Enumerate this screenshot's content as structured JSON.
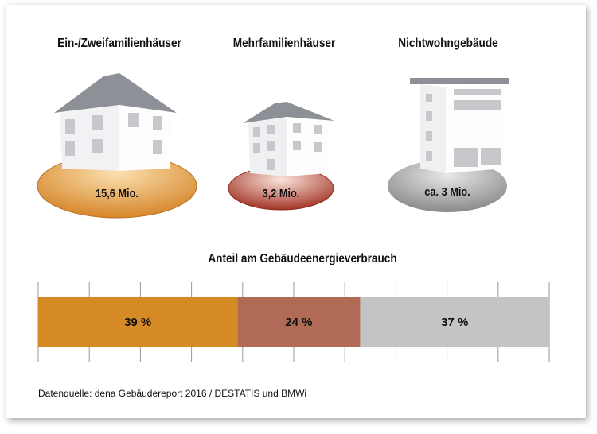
{
  "categories": [
    {
      "title": "Ein-/Zweifamilienhäuser",
      "count": "15,6 Mio.",
      "color": "#d68a2c"
    },
    {
      "title": "Mehrfamilienhäuser",
      "count": "3,2 Mio.",
      "color": "#a33a2a"
    },
    {
      "title": "Nichtwohngebäude",
      "count": "ca. 3 Mio.",
      "color": "#8f8f8f"
    }
  ],
  "chart_data": {
    "type": "bar",
    "stacked": true,
    "orientation": "horizontal",
    "title": "Anteil am Gebäudeenergieverbrauch",
    "categories": [
      "Ein-/Zweifamilienhäuser",
      "Mehrfamilienhäuser",
      "Nichtwohngebäude"
    ],
    "values": [
      39,
      24,
      37
    ],
    "labels": [
      "39 %",
      "24 %",
      "37 %"
    ],
    "colors": [
      "#d68a26",
      "#b06a55",
      "#c4c4c4"
    ],
    "xlim": [
      0,
      100
    ],
    "tick_step": 10
  },
  "source": "Datenquelle: dena Gebäudereport 2016 / DESTATIS und BMWi"
}
